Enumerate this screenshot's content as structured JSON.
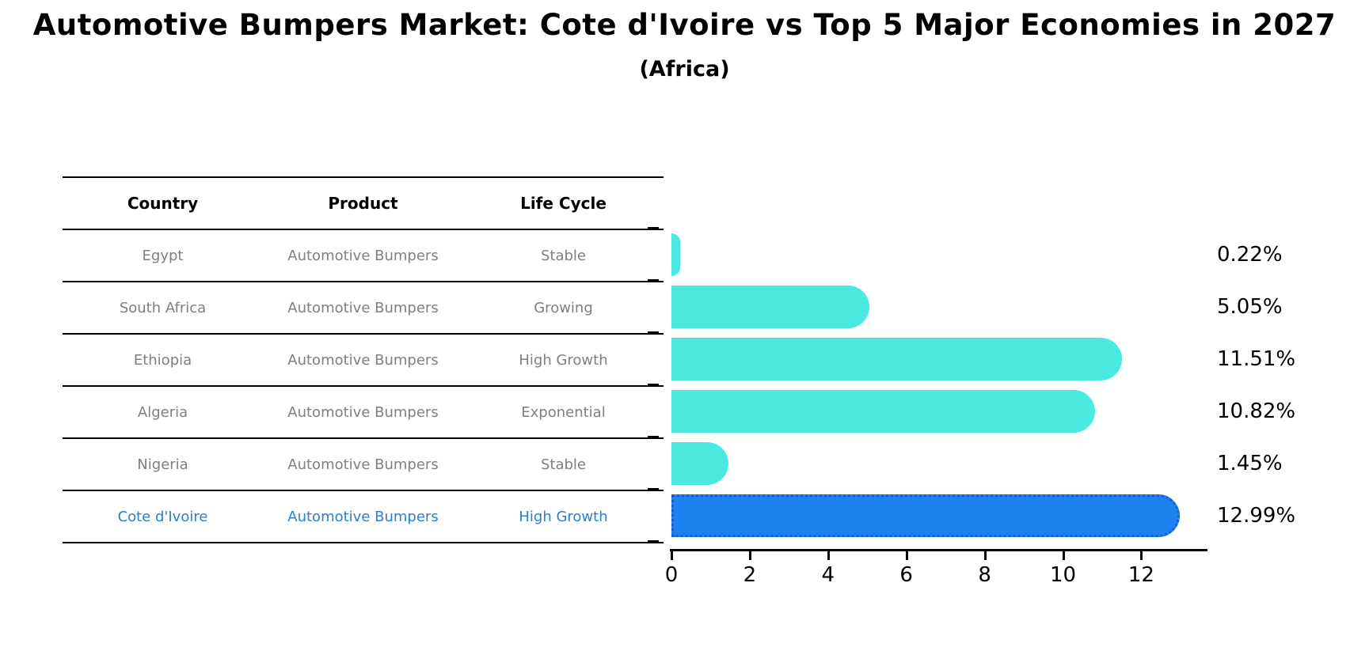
{
  "title": "Automotive Bumpers Market: Cote d'Ivoire vs Top 5 Major Economies in 2027",
  "subtitle": "(Africa)",
  "table": {
    "headers": [
      "Country",
      "Product",
      "Life Cycle"
    ],
    "rows": [
      {
        "country": "Egypt",
        "product": "Automotive Bumpers",
        "life_cycle": "Stable",
        "highlight": false
      },
      {
        "country": "South Africa",
        "product": "Automotive Bumpers",
        "life_cycle": "Growing",
        "highlight": false
      },
      {
        "country": "Ethiopia",
        "product": "Automotive Bumpers",
        "life_cycle": "High Growth",
        "highlight": false
      },
      {
        "country": "Algeria",
        "product": "Automotive Bumpers",
        "life_cycle": "Exponential",
        "highlight": false
      },
      {
        "country": "Nigeria",
        "product": "Automotive Bumpers",
        "life_cycle": "Stable",
        "highlight": false
      },
      {
        "country": "Cote d'Ivoire",
        "product": "Automotive Bumpers",
        "life_cycle": "High Growth",
        "highlight": true
      }
    ]
  },
  "chart_data": {
    "type": "bar",
    "orientation": "horizontal",
    "title": "Automotive Bumpers Market: Cote d'Ivoire vs Top 5 Major Economies in 2027",
    "subtitle": "(Africa)",
    "categories": [
      "Egypt",
      "South Africa",
      "Ethiopia",
      "Algeria",
      "Nigeria",
      "Cote d'Ivoire"
    ],
    "values": [
      0.22,
      5.05,
      11.51,
      10.82,
      1.45,
      12.99
    ],
    "value_labels": [
      "0.22%",
      "5.05%",
      "11.51%",
      "10.82%",
      "1.45%",
      "12.99%"
    ],
    "highlight_index": 5,
    "x_ticks": [
      0,
      2,
      4,
      6,
      8,
      10,
      12
    ],
    "xlim": [
      0,
      13.65
    ],
    "grid": false,
    "legend": "none",
    "xlabel": "",
    "ylabel": ""
  },
  "colors": {
    "bar_default": "#4ae9e0",
    "bar_highlight": "#1e82f0",
    "bar_highlight_border": "#1b5ec6",
    "row_text": "#7f7f7f",
    "highlight_text": "#2a7fd0",
    "header_text": "#000000",
    "axis": "#000000"
  }
}
